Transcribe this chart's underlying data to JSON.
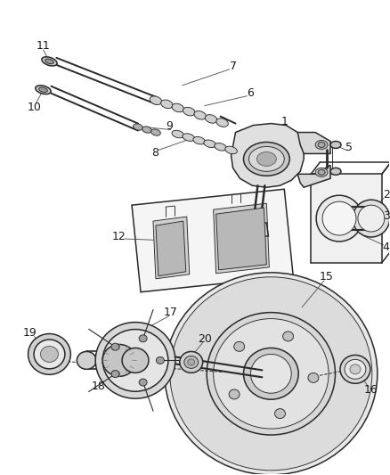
{
  "bg_color": "#ffffff",
  "line_color": "#2a2a2a",
  "label_color": "#1a1a1a",
  "lw_main": 1.1,
  "lw_thin": 0.65,
  "figsize": [
    4.38,
    5.33
  ],
  "dpi": 100
}
